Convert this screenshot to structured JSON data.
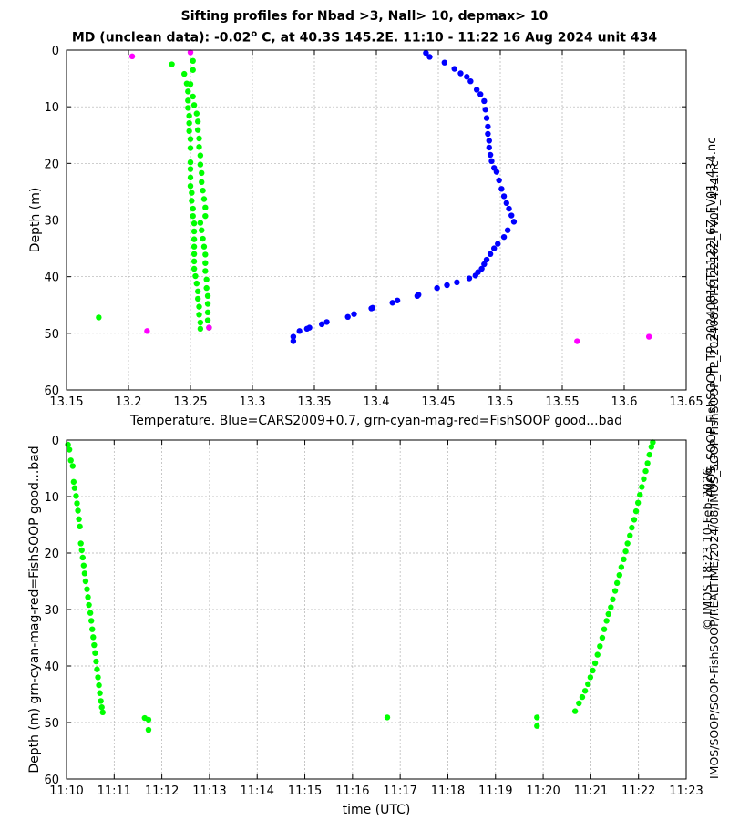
{
  "title": {
    "line1": "Sifting profiles for Nbad >3, Nall> 10, depmax> 10",
    "line2_pre": "MD (unclean data): -0.02",
    "line2_deg": "o",
    "line2_post": " C, at 40.3S 145.2E. 11:10 - 11:22 16 Aug 2024 unit 434"
  },
  "side_labels": {
    "filename": "IMOS_SOOP-FishSOOP_TP_20240816T112216Z_FV01_434.nc",
    "credit": "© IMOS 18:23 10-Feb-2026",
    "path": "IMOS/SOOP/SOOP-FishSOOP/REALTIME/2024/08/IMOS_SOOP-FishSOOP_TP_20240816T112216Z_FV01_434.nc"
  },
  "colors": {
    "cars": "#0000ff",
    "good": "#00ff00",
    "bad": "#ff00ff",
    "grid": "#b0b0b0"
  },
  "chart_data": [
    {
      "type": "scatter",
      "xlabel": "Temperature. Blue=CARS2009+0.7, grn-cyan-mag-red=FishSOOP good...bad",
      "ylabel": "Depth (m)",
      "xlim": [
        13.15,
        13.65
      ],
      "ylim": [
        60,
        0
      ],
      "xticks": [
        "13.15",
        "13.2",
        "13.25",
        "13.3",
        "13.35",
        "13.4",
        "13.45",
        "13.5",
        "13.55",
        "13.6",
        "13.65"
      ],
      "yticks": [
        "0",
        "10",
        "20",
        "30",
        "40",
        "50",
        "60"
      ],
      "grid": true,
      "series": [
        {
          "name": "CARS2009+0.7",
          "color": "#0000ff",
          "points": [
            [
              13.44,
              0.5
            ],
            [
              13.443,
              1.2
            ],
            [
              13.455,
              2.2
            ],
            [
              13.463,
              3.3
            ],
            [
              13.468,
              4.1
            ],
            [
              13.473,
              4.7
            ],
            [
              13.476,
              5.5
            ],
            [
              13.481,
              7.0
            ],
            [
              13.484,
              7.8
            ],
            [
              13.487,
              9.0
            ],
            [
              13.488,
              10.5
            ],
            [
              13.489,
              12.0
            ],
            [
              13.49,
              13.5
            ],
            [
              13.49,
              14.8
            ],
            [
              13.491,
              16.0
            ],
            [
              13.491,
              17.2
            ],
            [
              13.492,
              18.5
            ],
            [
              13.493,
              19.6
            ],
            [
              13.495,
              20.8
            ],
            [
              13.497,
              21.5
            ],
            [
              13.499,
              23.0
            ],
            [
              13.501,
              24.5
            ],
            [
              13.503,
              25.8
            ],
            [
              13.505,
              27.0
            ],
            [
              13.507,
              28.0
            ],
            [
              13.509,
              29.2
            ],
            [
              13.511,
              30.3
            ],
            [
              13.506,
              31.8
            ],
            [
              13.503,
              33.0
            ],
            [
              13.498,
              34.2
            ],
            [
              13.495,
              35.0
            ],
            [
              13.492,
              36.0
            ],
            [
              13.489,
              37.0
            ],
            [
              13.487,
              37.8
            ],
            [
              13.485,
              38.6
            ],
            [
              13.482,
              39.2
            ],
            [
              13.48,
              39.8
            ],
            [
              13.475,
              40.3
            ],
            [
              13.465,
              41.0
            ],
            [
              13.457,
              41.5
            ],
            [
              13.449,
              42.0
            ],
            [
              13.434,
              43.2
            ],
            [
              13.433,
              43.4
            ],
            [
              13.417,
              44.2
            ],
            [
              13.413,
              44.6
            ],
            [
              13.397,
              45.5
            ],
            [
              13.396,
              45.6
            ],
            [
              13.382,
              46.6
            ],
            [
              13.377,
              47.1
            ],
            [
              13.36,
              48.0
            ],
            [
              13.356,
              48.4
            ],
            [
              13.346,
              49.0
            ],
            [
              13.344,
              49.2
            ],
            [
              13.338,
              49.6
            ],
            [
              13.333,
              50.6
            ],
            [
              13.333,
              51.4
            ]
          ]
        },
        {
          "name": "FishSOOP good",
          "color": "#00ff00",
          "points": [
            [
              13.176,
              47.2
            ],
            [
              13.235,
              2.5
            ],
            [
              13.245,
              4.2
            ],
            [
              13.247,
              5.9
            ],
            [
              13.248,
              7.3
            ],
            [
              13.248,
              8.9
            ],
            [
              13.248,
              10.2
            ],
            [
              13.249,
              11.6
            ],
            [
              13.249,
              12.9
            ],
            [
              13.249,
              14.3
            ],
            [
              13.25,
              15.7
            ],
            [
              13.25,
              17.3
            ],
            [
              13.25,
              19.8
            ],
            [
              13.25,
              21.0
            ],
            [
              13.25,
              22.5
            ],
            [
              13.25,
              24.0
            ],
            [
              13.251,
              25.2
            ],
            [
              13.251,
              26.6
            ],
            [
              13.252,
              28.0
            ],
            [
              13.252,
              29.3
            ],
            [
              13.253,
              30.6
            ],
            [
              13.253,
              32.0
            ],
            [
              13.253,
              33.4
            ],
            [
              13.253,
              34.7
            ],
            [
              13.253,
              36.0
            ],
            [
              13.253,
              37.3
            ],
            [
              13.253,
              38.6
            ],
            [
              13.254,
              39.9
            ],
            [
              13.255,
              41.2
            ],
            [
              13.256,
              42.6
            ],
            [
              13.256,
              43.9
            ],
            [
              13.257,
              45.3
            ],
            [
              13.257,
              46.7
            ],
            [
              13.258,
              48.1
            ],
            [
              13.258,
              49.2
            ],
            [
              13.252,
              1.9
            ],
            [
              13.252,
              3.5
            ],
            [
              13.25,
              6.0
            ],
            [
              13.252,
              8.2
            ],
            [
              13.253,
              9.7
            ],
            [
              13.255,
              11.2
            ],
            [
              13.256,
              12.6
            ],
            [
              13.256,
              14.1
            ],
            [
              13.257,
              15.6
            ],
            [
              13.257,
              17.1
            ],
            [
              13.258,
              18.6
            ],
            [
              13.258,
              20.2
            ],
            [
              13.259,
              21.7
            ],
            [
              13.259,
              23.3
            ],
            [
              13.26,
              24.8
            ],
            [
              13.261,
              26.3
            ],
            [
              13.262,
              27.8
            ],
            [
              13.262,
              29.3
            ],
            [
              13.258,
              30.5
            ],
            [
              13.259,
              31.8
            ],
            [
              13.26,
              33.3
            ],
            [
              13.261,
              34.7
            ],
            [
              13.262,
              36.1
            ],
            [
              13.262,
              37.6
            ],
            [
              13.262,
              39.0
            ],
            [
              13.263,
              40.5
            ],
            [
              13.263,
              42.0
            ],
            [
              13.264,
              43.4
            ],
            [
              13.264,
              44.8
            ],
            [
              13.264,
              46.3
            ],
            [
              13.264,
              47.7
            ],
            [
              13.265,
              49.0
            ]
          ]
        },
        {
          "name": "FishSOOP bad",
          "color": "#ff00ff",
          "points": [
            [
              13.203,
              1.1
            ],
            [
              13.25,
              0.4
            ],
            [
              13.265,
              49.0
            ],
            [
              13.215,
              49.6
            ],
            [
              13.562,
              51.4
            ],
            [
              13.62,
              50.6
            ]
          ]
        }
      ]
    },
    {
      "type": "scatter",
      "xlabel": "time (UTC)",
      "ylabel": "Depth (m) grn-cyan-mag-red=FishSOOP good...bad",
      "xlim": [
        0,
        13
      ],
      "ylim": [
        60,
        0
      ],
      "xticks": [
        "11:10",
        "11:11",
        "11:12",
        "11:13",
        "11:14",
        "11:15",
        "11:16",
        "11:17",
        "11:18",
        "11:19",
        "11:20",
        "11:21",
        "11:22",
        "11:23"
      ],
      "yticks": [
        "0",
        "10",
        "20",
        "30",
        "40",
        "50",
        "60"
      ],
      "x_unit": "minutes after 11:10 UTC",
      "grid": true,
      "series": [
        {
          "name": "FishSOOP good",
          "color": "#00ff00",
          "points": [
            [
              0.03,
              0.8
            ],
            [
              0.06,
              1.7
            ],
            [
              0.09,
              3.6
            ],
            [
              0.13,
              4.6
            ],
            [
              0.15,
              7.4
            ],
            [
              0.17,
              8.5
            ],
            [
              0.2,
              9.9
            ],
            [
              0.22,
              11.2
            ],
            [
              0.24,
              12.5
            ],
            [
              0.26,
              14.0
            ],
            [
              0.28,
              15.3
            ],
            [
              0.3,
              18.3
            ],
            [
              0.32,
              19.5
            ],
            [
              0.34,
              20.8
            ],
            [
              0.36,
              22.2
            ],
            [
              0.38,
              23.6
            ],
            [
              0.4,
              25.0
            ],
            [
              0.43,
              26.4
            ],
            [
              0.45,
              27.8
            ],
            [
              0.47,
              29.2
            ],
            [
              0.5,
              30.6
            ],
            [
              0.52,
              32.0
            ],
            [
              0.54,
              33.5
            ],
            [
              0.56,
              34.9
            ],
            [
              0.58,
              36.3
            ],
            [
              0.6,
              37.7
            ],
            [
              0.62,
              39.2
            ],
            [
              0.64,
              40.6
            ],
            [
              0.66,
              42.0
            ],
            [
              0.68,
              43.4
            ],
            [
              0.7,
              44.8
            ],
            [
              0.72,
              46.2
            ],
            [
              0.74,
              47.3
            ],
            [
              0.76,
              48.2
            ],
            [
              1.64,
              49.2
            ],
            [
              1.72,
              49.5
            ],
            [
              1.72,
              51.3
            ],
            [
              6.73,
              49.1
            ],
            [
              9.87,
              49.1
            ],
            [
              9.87,
              50.6
            ],
            [
              10.67,
              48.0
            ],
            [
              10.75,
              46.6
            ],
            [
              10.82,
              45.5
            ],
            [
              10.88,
              44.4
            ],
            [
              10.94,
              43.2
            ],
            [
              10.99,
              42.0
            ],
            [
              11.04,
              40.8
            ],
            [
              11.09,
              39.5
            ],
            [
              11.14,
              38.0
            ],
            [
              11.19,
              36.5
            ],
            [
              11.24,
              35.0
            ],
            [
              11.28,
              33.5
            ],
            [
              11.33,
              32.0
            ],
            [
              11.37,
              30.8
            ],
            [
              11.42,
              29.6
            ],
            [
              11.46,
              28.2
            ],
            [
              11.51,
              26.7
            ],
            [
              11.55,
              25.3
            ],
            [
              11.6,
              23.9
            ],
            [
              11.64,
              22.5
            ],
            [
              11.69,
              21.1
            ],
            [
              11.73,
              19.7
            ],
            [
              11.77,
              18.3
            ],
            [
              11.82,
              16.9
            ],
            [
              11.86,
              15.5
            ],
            [
              11.91,
              14.1
            ],
            [
              11.95,
              12.6
            ],
            [
              11.99,
              11.1
            ],
            [
              12.03,
              9.7
            ],
            [
              12.07,
              8.3
            ],
            [
              12.11,
              6.9
            ],
            [
              12.15,
              5.5
            ],
            [
              12.19,
              4.1
            ],
            [
              12.23,
              2.6
            ],
            [
              12.27,
              1.2
            ],
            [
              12.3,
              0.4
            ]
          ]
        }
      ]
    }
  ]
}
